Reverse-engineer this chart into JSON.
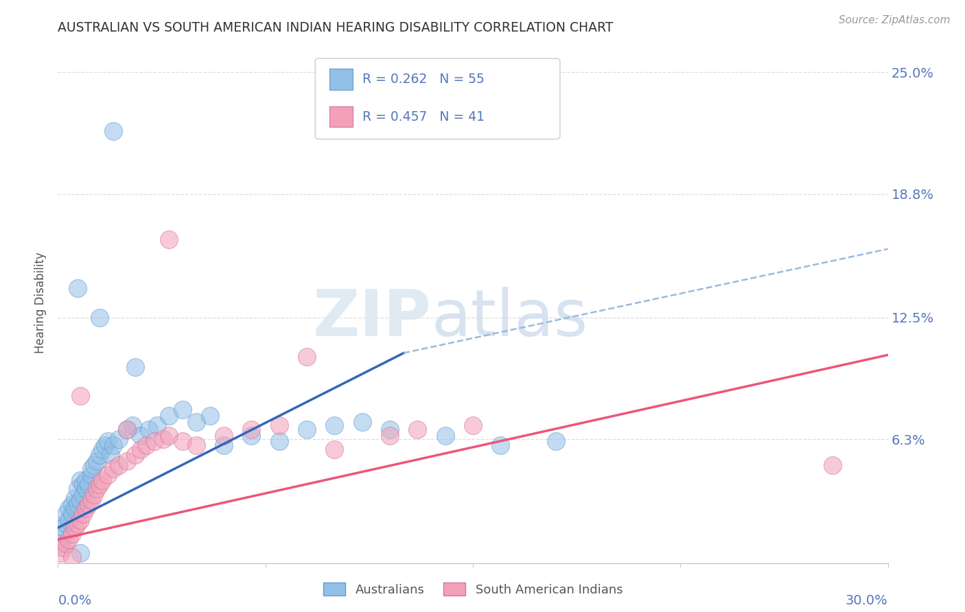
{
  "title": "AUSTRALIAN VS SOUTH AMERICAN INDIAN HEARING DISABILITY CORRELATION CHART",
  "source": "Source: ZipAtlas.com",
  "ylabel": "Hearing Disability",
  "xlim": [
    0.0,
    0.3
  ],
  "ylim": [
    0.0,
    0.265
  ],
  "ytick_vals": [
    0.063,
    0.125,
    0.188,
    0.25
  ],
  "ytick_labels": [
    "6.3%",
    "12.5%",
    "18.8%",
    "25.0%"
  ],
  "blue_color": "#92C0E8",
  "pink_color": "#F4A0B8",
  "blue_line_color": "#3366BB",
  "pink_line_color": "#EE5577",
  "dashed_line_color": "#99BBDD",
  "axis_label_color": "#5577BB",
  "title_color": "#333333",
  "source_color": "#999999",
  "ylabel_color": "#555555",
  "grid_color": "#DDDDDD",
  "legend_label1": "Australians",
  "legend_label2": "South American Indians",
  "aus_x": [
    0.001,
    0.002,
    0.002,
    0.003,
    0.003,
    0.004,
    0.004,
    0.005,
    0.005,
    0.006,
    0.006,
    0.007,
    0.007,
    0.008,
    0.008,
    0.009,
    0.009,
    0.01,
    0.01,
    0.011,
    0.012,
    0.012,
    0.013,
    0.014,
    0.015,
    0.016,
    0.017,
    0.018,
    0.019,
    0.02,
    0.022,
    0.025,
    0.027,
    0.03,
    0.033,
    0.036,
    0.04,
    0.045,
    0.05,
    0.055,
    0.06,
    0.07,
    0.08,
    0.09,
    0.1,
    0.11,
    0.12,
    0.14,
    0.16,
    0.18,
    0.007,
    0.015,
    0.02,
    0.028,
    0.008
  ],
  "aus_y": [
    0.01,
    0.015,
    0.018,
    0.02,
    0.025,
    0.022,
    0.028,
    0.025,
    0.03,
    0.028,
    0.033,
    0.03,
    0.038,
    0.032,
    0.042,
    0.035,
    0.04,
    0.038,
    0.042,
    0.04,
    0.045,
    0.048,
    0.05,
    0.052,
    0.055,
    0.058,
    0.06,
    0.062,
    0.055,
    0.06,
    0.063,
    0.068,
    0.07,
    0.065,
    0.068,
    0.07,
    0.075,
    0.078,
    0.072,
    0.075,
    0.06,
    0.065,
    0.062,
    0.068,
    0.07,
    0.072,
    0.068,
    0.065,
    0.06,
    0.062,
    0.14,
    0.125,
    0.22,
    0.1,
    0.005
  ],
  "sam_x": [
    0.001,
    0.002,
    0.003,
    0.004,
    0.005,
    0.006,
    0.007,
    0.008,
    0.009,
    0.01,
    0.011,
    0.012,
    0.013,
    0.014,
    0.015,
    0.016,
    0.018,
    0.02,
    0.022,
    0.025,
    0.028,
    0.03,
    0.032,
    0.035,
    0.038,
    0.04,
    0.045,
    0.05,
    0.06,
    0.07,
    0.08,
    0.1,
    0.12,
    0.13,
    0.15,
    0.28,
    0.09,
    0.04,
    0.025,
    0.008,
    0.005
  ],
  "sam_y": [
    0.005,
    0.008,
    0.01,
    0.012,
    0.015,
    0.018,
    0.02,
    0.022,
    0.025,
    0.028,
    0.03,
    0.032,
    0.035,
    0.038,
    0.04,
    0.042,
    0.045,
    0.048,
    0.05,
    0.052,
    0.055,
    0.058,
    0.06,
    0.062,
    0.063,
    0.065,
    0.062,
    0.06,
    0.065,
    0.068,
    0.07,
    0.058,
    0.065,
    0.068,
    0.07,
    0.05,
    0.105,
    0.165,
    0.068,
    0.085,
    0.003
  ],
  "aus_line_x": [
    0.0,
    0.125
  ],
  "aus_line_y": [
    0.018,
    0.107
  ],
  "dash_line_x": [
    0.125,
    0.3
  ],
  "dash_line_y": [
    0.107,
    0.16
  ],
  "sam_line_x": [
    0.0,
    0.3
  ],
  "sam_line_y": [
    0.012,
    0.106
  ]
}
